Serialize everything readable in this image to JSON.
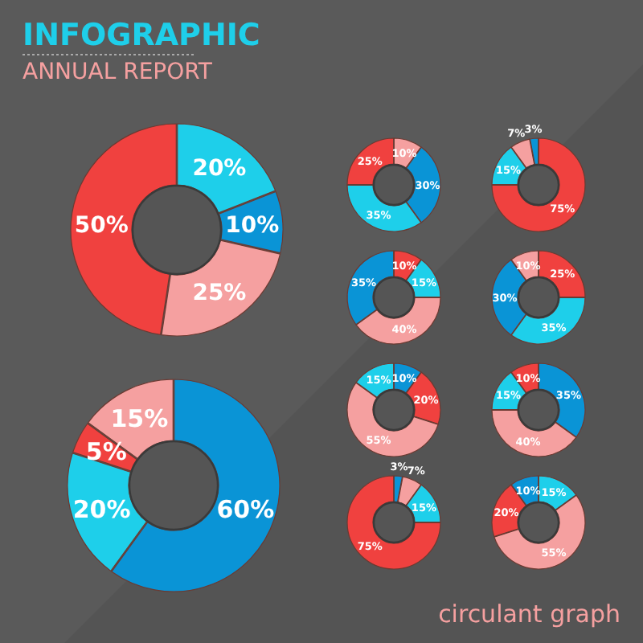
{
  "chart_data": [
    {
      "type": "other",
      "title": "INFOGRAPHIC",
      "subtitle": "ANNUAL REPORT",
      "annotations": [
        "circulant graph"
      ]
    },
    {
      "type": "donut",
      "categories": [
        null,
        null,
        null,
        null
      ],
      "values": [
        20,
        10,
        25,
        50
      ],
      "colors": [
        "#1ecfea",
        "#0a94d6",
        "#f5a0a0",
        "#f0413f"
      ],
      "value_labels": [
        "20%",
        "10%",
        "25%",
        "50%"
      ]
    },
    {
      "type": "donut",
      "categories": [
        null,
        null,
        null,
        null
      ],
      "values": [
        60,
        20,
        5,
        15
      ],
      "colors": [
        "#0a94d6",
        "#1ecfea",
        "#f0413f",
        "#f5a0a0"
      ],
      "value_labels": [
        "60%",
        "20%",
        "5%",
        "15%"
      ]
    },
    {
      "type": "donut",
      "categories": [
        null,
        null,
        null,
        null
      ],
      "values": [
        10,
        30,
        35,
        25
      ],
      "colors": [
        "#f5a0a0",
        "#0a94d6",
        "#1ecfea",
        "#f0413f"
      ],
      "value_labels": [
        "10%",
        "30%",
        "35%",
        "25%"
      ]
    },
    {
      "type": "donut",
      "categories": [
        null,
        null,
        null,
        null
      ],
      "values": [
        75,
        15,
        7,
        3
      ],
      "colors": [
        "#f0413f",
        "#1ecfea",
        "#f5a0a0",
        "#0a94d6"
      ],
      "value_labels": [
        "75%",
        "15%",
        "7%",
        "3%"
      ]
    },
    {
      "type": "donut",
      "categories": [
        null,
        null,
        null,
        null
      ],
      "values": [
        10,
        15,
        40,
        35
      ],
      "colors": [
        "#f0413f",
        "#1ecfea",
        "#f5a0a0",
        "#0a94d6"
      ],
      "value_labels": [
        "10%",
        "15%",
        "40%",
        "35%"
      ]
    },
    {
      "type": "donut",
      "categories": [
        null,
        null,
        null,
        null
      ],
      "values": [
        25,
        35,
        30,
        10
      ],
      "colors": [
        "#f0413f",
        "#1ecfea",
        "#0a94d6",
        "#f5a0a0"
      ],
      "value_labels": [
        "25%",
        "35%",
        "30%",
        "10%"
      ]
    },
    {
      "type": "donut",
      "categories": [
        null,
        null,
        null,
        null
      ],
      "values": [
        10,
        20,
        55,
        15
      ],
      "colors": [
        "#0a94d6",
        "#f0413f",
        "#f5a0a0",
        "#1ecfea"
      ],
      "value_labels": [
        "10%",
        "20%",
        "55%",
        "15%"
      ]
    },
    {
      "type": "donut",
      "categories": [
        null,
        null,
        null,
        null
      ],
      "values": [
        35,
        40,
        15,
        10
      ],
      "colors": [
        "#0a94d6",
        "#f5a0a0",
        "#1ecfea",
        "#f0413f"
      ],
      "value_labels": [
        "35%",
        "40%",
        "15%",
        "10%"
      ]
    },
    {
      "type": "donut",
      "categories": [
        null,
        null,
        null,
        null
      ],
      "values": [
        3,
        7,
        15,
        75
      ],
      "colors": [
        "#0a94d6",
        "#f5a0a0",
        "#1ecfea",
        "#f0413f"
      ],
      "value_labels": [
        "3%",
        "7%",
        "15%",
        "75%"
      ]
    },
    {
      "type": "donut",
      "categories": [
        null,
        null,
        null,
        null
      ],
      "values": [
        15,
        55,
        20,
        10
      ],
      "colors": [
        "#1ecfea",
        "#f5a0a0",
        "#f0413f",
        "#0a94d6"
      ],
      "value_labels": [
        "15%",
        "55%",
        "20%",
        "10%"
      ]
    }
  ]
}
